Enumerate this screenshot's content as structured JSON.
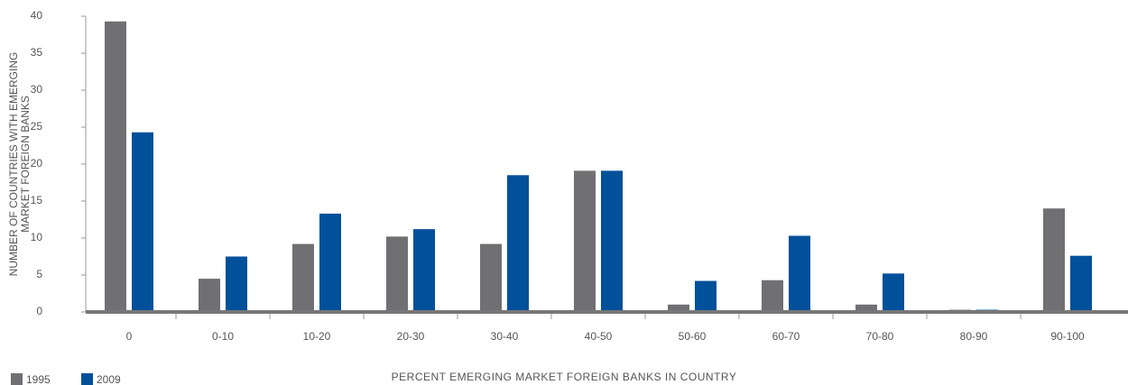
{
  "chart_data": {
    "type": "bar",
    "xlabel": "PERCENT EMERGING MARKET FOREIGN BANKS IN COUNTRY",
    "ylabel": [
      "NUMBER OF COUNTRIES WITH EMERGING",
      "MARKET FOREIGN BANKS"
    ],
    "categories": [
      "0",
      "0-10",
      "10-20",
      "20-30",
      "30-40",
      "40-50",
      "50-60",
      "60-70",
      "70-80",
      "80-90",
      "90-100"
    ],
    "series": [
      {
        "name": "1995",
        "color": "#707073",
        "values": [
          39.3,
          4.5,
          9.2,
          10.2,
          9.2,
          19.1,
          1,
          4.3,
          1,
          0.3,
          14
        ]
      },
      {
        "name": "2009",
        "color": "#00509a",
        "values": [
          24.3,
          7.5,
          13.3,
          11.2,
          18.5,
          19.1,
          4.2,
          10.3,
          5.2,
          0.3,
          7.6
        ]
      }
    ],
    "ylim": [
      0,
      40
    ],
    "yticks": [
      0,
      5,
      10,
      15,
      20,
      25,
      30,
      35,
      40
    ],
    "grid": false,
    "legend": "bottom-left"
  }
}
